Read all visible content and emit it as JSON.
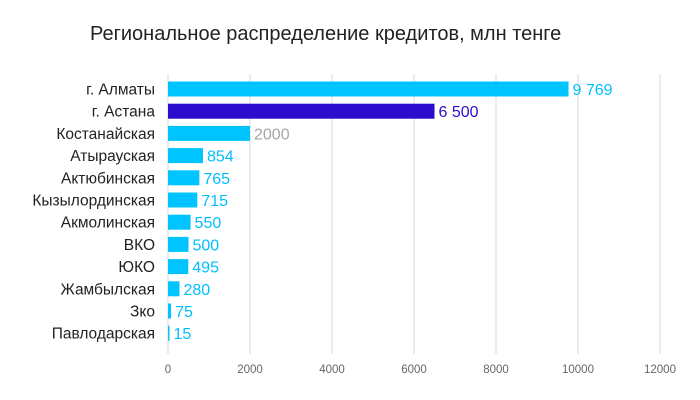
{
  "chart_data": {
    "type": "bar",
    "orientation": "horizontal",
    "title": "Региональное распределение кредитов, млн тенге",
    "xlabel": "",
    "ylabel": "",
    "xlim": [
      0,
      12000
    ],
    "x_ticks": [
      "0",
      "2000",
      "4000",
      "6000",
      "8000",
      "10000",
      "12000"
    ],
    "grid": "vertical",
    "legend": "none",
    "categories": [
      "г. Алматы",
      "г. Астана",
      "Костанайская",
      "Атырауская",
      "Актюбинская",
      "Кызылординская",
      "Акмолинская",
      "ВКО",
      "ЮКО",
      "Жамбылская",
      "Зко",
      "Павлодарская"
    ],
    "values": [
      9769,
      6500,
      2000,
      854,
      765,
      715,
      550,
      500,
      495,
      280,
      75,
      15
    ],
    "value_labels": [
      "9 769",
      "6 500",
      "2000",
      "854",
      "765",
      "715",
      "550",
      "500",
      "495",
      "280",
      "75",
      "15"
    ],
    "bar_colors": [
      "#00c4ff",
      "#2c0ccd",
      "#00c4ff",
      "#00c4ff",
      "#00c4ff",
      "#00c4ff",
      "#00c4ff",
      "#00c4ff",
      "#00c4ff",
      "#00c4ff",
      "#00c4ff",
      "#00c4ff"
    ],
    "label_colors": [
      "#00bfff",
      "#2c0ccd",
      "#a6a6a6",
      "#00bfff",
      "#00bfff",
      "#00bfff",
      "#00bfff",
      "#00bfff",
      "#00bfff",
      "#00bfff",
      "#00bfff",
      "#00bfff"
    ]
  }
}
